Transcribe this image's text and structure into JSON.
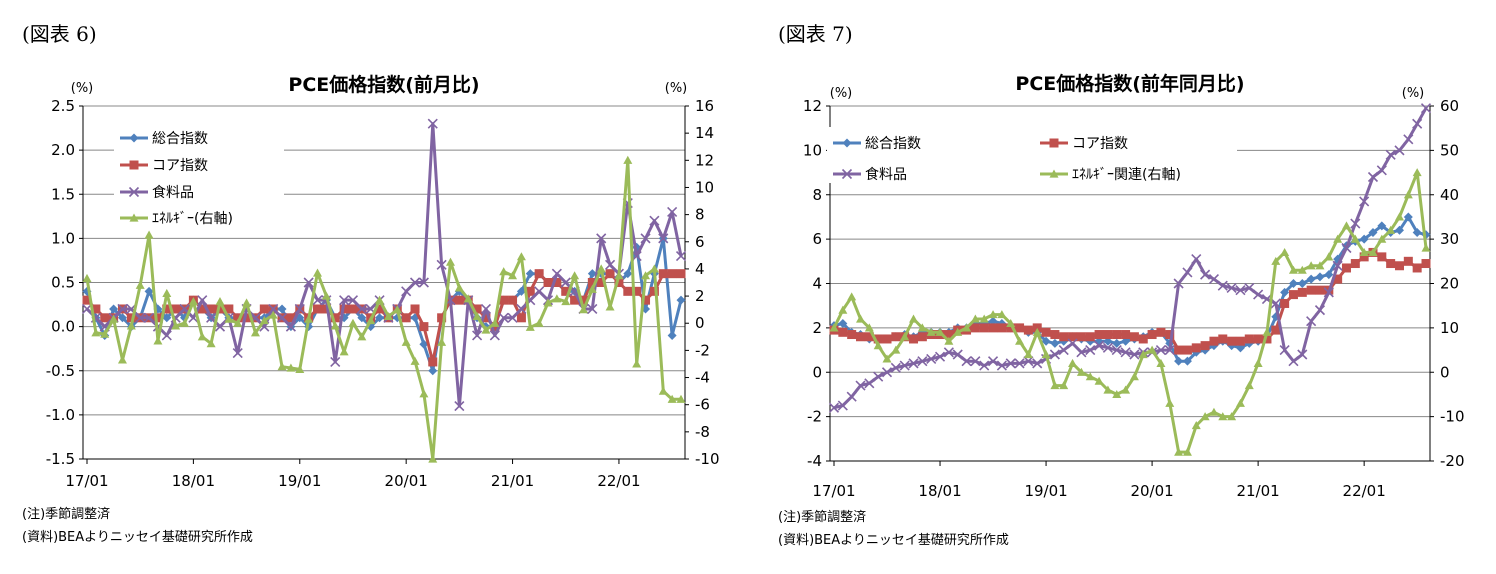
{
  "chart_data": [
    {
      "type": "line",
      "figure_label": "(図表 6)",
      "title": "PCE価格指数(前月比)",
      "y_unit_left": "(%)",
      "y_unit_right": "(%)",
      "ylim_left": [
        -1.5,
        2.5
      ],
      "ylim_right": [
        -10,
        16
      ],
      "yticks_left": [
        "2.5",
        "2.0",
        "1.5",
        "1.0",
        "0.5",
        "0.0",
        "-0.5",
        "-1.0",
        "-1.5"
      ],
      "yticks_right": [
        "16",
        "14",
        "12",
        "10",
        "8",
        "6",
        "4",
        "2",
        "0",
        "-2",
        "-4",
        "-6",
        "-8",
        "-10"
      ],
      "x_tick_labels": [
        "17/01",
        "18/01",
        "19/01",
        "20/01",
        "21/01",
        "22/01"
      ],
      "x_start": "2017-01",
      "legend_position": "top-left",
      "grid": "horizontal",
      "series": [
        {
          "name": "総合指数",
          "axis": "left",
          "color": "#4F81BD",
          "marker": "diamond",
          "values": [
            0.4,
            0.1,
            -0.1,
            0.2,
            0.1,
            0.0,
            0.1,
            0.4,
            0.2,
            0.1,
            0.2,
            0.1,
            0.3,
            0.2,
            0.1,
            0.2,
            0.1,
            0.1,
            0.1,
            0.1,
            0.1,
            0.2,
            0.2,
            0.0,
            0.1,
            0.0,
            0.2,
            0.3,
            0.1,
            0.1,
            0.2,
            0.1,
            0.0,
            0.1,
            0.1,
            0.1,
            0.1,
            0.1,
            -0.2,
            -0.5,
            0.1,
            0.3,
            0.4,
            0.3,
            0.1,
            0.0,
            0.0,
            0.3,
            0.3,
            0.4,
            0.6,
            0.6,
            0.5,
            0.5,
            0.4,
            0.4,
            0.3,
            0.6,
            0.6,
            0.6,
            0.5,
            0.6,
            0.9,
            0.2,
            0.6,
            1.0,
            -0.1,
            0.3
          ]
        },
        {
          "name": "コア指数",
          "axis": "left",
          "color": "#C0504D",
          "marker": "square",
          "values": [
            0.3,
            0.2,
            0.1,
            0.1,
            0.2,
            0.1,
            0.1,
            0.1,
            0.1,
            0.2,
            0.2,
            0.2,
            0.3,
            0.2,
            0.2,
            0.2,
            0.2,
            0.1,
            0.1,
            0.1,
            0.2,
            0.2,
            0.1,
            0.1,
            0.2,
            0.1,
            0.2,
            0.2,
            0.1,
            0.2,
            0.2,
            0.2,
            0.1,
            0.2,
            0.1,
            0.2,
            0.1,
            0.2,
            0.0,
            -0.4,
            0.1,
            0.3,
            0.3,
            0.3,
            0.2,
            0.1,
            0.0,
            0.3,
            0.3,
            0.1,
            0.4,
            0.6,
            0.5,
            0.5,
            0.4,
            0.3,
            0.3,
            0.5,
            0.5,
            0.6,
            0.5,
            0.4,
            0.4,
            0.3,
            0.4,
            0.6,
            0.6,
            0.6
          ]
        },
        {
          "name": "食料品",
          "axis": "left",
          "color": "#8064A2",
          "marker": "x",
          "values": [
            0.2,
            0.1,
            0.0,
            0.1,
            0.2,
            0.2,
            0.1,
            0.1,
            0.0,
            -0.1,
            0.1,
            0.2,
            0.1,
            0.3,
            0.1,
            0.0,
            0.1,
            -0.3,
            0.2,
            0.1,
            0.0,
            0.2,
            0.1,
            0.0,
            0.2,
            0.5,
            0.3,
            0.3,
            -0.4,
            0.3,
            0.3,
            0.2,
            0.2,
            0.3,
            0.1,
            0.2,
            0.4,
            0.5,
            0.5,
            2.3,
            0.7,
            0.3,
            -0.9,
            0.3,
            -0.1,
            0.2,
            -0.1,
            0.1,
            0.1,
            0.2,
            0.3,
            0.4,
            0.3,
            0.6,
            0.5,
            0.4,
            0.2,
            0.2,
            1.0,
            0.7,
            0.6,
            1.4,
            0.8,
            1.0,
            1.2,
            1.0,
            1.3,
            0.8
          ]
        },
        {
          "name": "ｴﾈﾙｷﾞｰ(右軸)",
          "axis": "right",
          "color": "#9BBB59",
          "marker": "triangle",
          "values": [
            3.3,
            -0.7,
            -0.8,
            0.3,
            -2.7,
            -0.2,
            2.8,
            6.5,
            -1.3,
            2.2,
            -0.2,
            0.0,
            1.6,
            -1.0,
            -1.5,
            1.6,
            0.3,
            0.0,
            1.5,
            -0.7,
            0.2,
            0.6,
            -3.2,
            -3.3,
            -3.4,
            0.3,
            3.7,
            2.0,
            -0.2,
            -2.1,
            0.0,
            -1.0,
            0.2,
            1.7,
            0.5,
            1.0,
            -1.4,
            -2.8,
            -5.2,
            -10.0,
            -1.4,
            4.5,
            2.6,
            1.8,
            0.5,
            -0.5,
            0.0,
            3.8,
            3.5,
            4.9,
            -0.3,
            0.0,
            1.5,
            1.8,
            1.6,
            3.5,
            1.0,
            2.5,
            4.0,
            1.2,
            3.5,
            12.0,
            -3.0,
            3.5,
            4.0,
            -5.0,
            -5.6,
            -5.6
          ]
        }
      ],
      "notes": [
        "(注)季節調整済",
        "(資料)BEAよりニッセイ基礎研究所作成"
      ]
    },
    {
      "type": "line",
      "figure_label": "(図表 7)",
      "title": "PCE価格指数(前年同月比)",
      "y_unit_left": "(%)",
      "y_unit_right": "(%)",
      "ylim_left": [
        -4,
        12
      ],
      "ylim_right": [
        -20,
        60
      ],
      "yticks_left": [
        "12",
        "10",
        "8",
        "6",
        "4",
        "2",
        "0",
        "-2",
        "-4"
      ],
      "yticks_right": [
        "60",
        "50",
        "40",
        "30",
        "20",
        "10",
        "0",
        "-10",
        "-20"
      ],
      "x_tick_labels": [
        "17/01",
        "18/01",
        "19/01",
        "20/01",
        "21/01",
        "22/01"
      ],
      "x_start": "2017-01",
      "legend_position": "top",
      "grid": "horizontal",
      "series": [
        {
          "name": "総合指数",
          "axis": "left",
          "color": "#4F81BD",
          "marker": "diamond",
          "values": [
            2.1,
            2.2,
            1.8,
            1.7,
            1.5,
            1.5,
            1.5,
            1.6,
            1.7,
            1.6,
            1.8,
            1.8,
            1.8,
            1.8,
            2.0,
            2.0,
            2.2,
            2.2,
            2.3,
            2.2,
            2.0,
            2.0,
            1.8,
            1.8,
            1.4,
            1.3,
            1.4,
            1.6,
            1.5,
            1.4,
            1.4,
            1.4,
            1.3,
            1.4,
            1.5,
            1.6,
            1.8,
            1.8,
            1.3,
            0.5,
            0.5,
            0.9,
            1.0,
            1.2,
            1.4,
            1.2,
            1.1,
            1.3,
            1.4,
            1.6,
            2.5,
            3.6,
            4.0,
            4.0,
            4.2,
            4.3,
            4.4,
            5.1,
            5.7,
            5.9,
            6.0,
            6.3,
            6.6,
            6.3,
            6.4,
            7.0,
            6.3,
            6.2
          ]
        },
        {
          "name": "コア指数",
          "axis": "left",
          "color": "#C0504D",
          "marker": "square",
          "values": [
            1.9,
            1.8,
            1.7,
            1.6,
            1.6,
            1.5,
            1.5,
            1.6,
            1.6,
            1.5,
            1.6,
            1.7,
            1.7,
            1.7,
            1.9,
            1.9,
            2.0,
            2.0,
            2.0,
            2.0,
            2.0,
            2.0,
            1.9,
            2.0,
            1.8,
            1.7,
            1.6,
            1.6,
            1.6,
            1.6,
            1.7,
            1.7,
            1.7,
            1.7,
            1.6,
            1.5,
            1.7,
            1.8,
            1.7,
            1.0,
            1.0,
            1.1,
            1.2,
            1.4,
            1.5,
            1.4,
            1.4,
            1.5,
            1.5,
            1.5,
            1.9,
            3.1,
            3.5,
            3.6,
            3.7,
            3.7,
            3.7,
            4.2,
            4.7,
            4.9,
            5.2,
            5.4,
            5.2,
            4.9,
            4.8,
            5.0,
            4.7,
            4.9
          ]
        },
        {
          "name": "食料品",
          "axis": "left",
          "color": "#8064A2",
          "marker": "x",
          "values": [
            -1.6,
            -1.5,
            -1.1,
            -0.6,
            -0.5,
            -0.2,
            0.0,
            0.2,
            0.3,
            0.4,
            0.5,
            0.6,
            0.7,
            0.9,
            0.8,
            0.5,
            0.5,
            0.3,
            0.5,
            0.3,
            0.4,
            0.4,
            0.5,
            0.4,
            0.6,
            0.8,
            1.0,
            1.3,
            0.9,
            1.0,
            1.2,
            1.1,
            1.0,
            0.9,
            0.8,
            0.9,
            0.9,
            1.0,
            1.0,
            4.0,
            4.5,
            5.1,
            4.4,
            4.2,
            3.9,
            3.8,
            3.7,
            3.8,
            3.5,
            3.3,
            3.1,
            1.0,
            0.5,
            0.8,
            2.3,
            2.8,
            3.6,
            4.8,
            5.6,
            6.7,
            7.7,
            8.8,
            9.1,
            9.8,
            10.0,
            10.5,
            11.2,
            11.9
          ]
        },
        {
          "name": "ｴﾈﾙｷﾞｰ関連(右軸)",
          "axis": "right",
          "color": "#9BBB59",
          "marker": "triangle",
          "values": [
            10,
            14,
            17,
            12,
            10,
            6,
            3,
            5,
            8,
            12,
            10,
            9,
            9,
            7,
            9,
            10,
            12,
            12,
            13,
            13,
            11,
            7,
            4,
            9,
            4,
            -3,
            -3,
            2,
            0,
            -1,
            -2,
            -4,
            -5,
            -4,
            -1,
            4,
            5,
            2,
            -7,
            -18,
            -18,
            -12,
            -10,
            -9,
            -10,
            -10,
            -7,
            -3,
            2,
            9,
            25,
            27,
            23,
            23,
            24,
            24,
            26,
            30,
            33,
            30,
            27,
            27,
            30,
            32,
            35,
            40,
            45,
            28
          ]
        }
      ],
      "notes": [
        "(注)季節調整済",
        "(資料)BEAよりニッセイ基礎研究所作成"
      ]
    }
  ]
}
